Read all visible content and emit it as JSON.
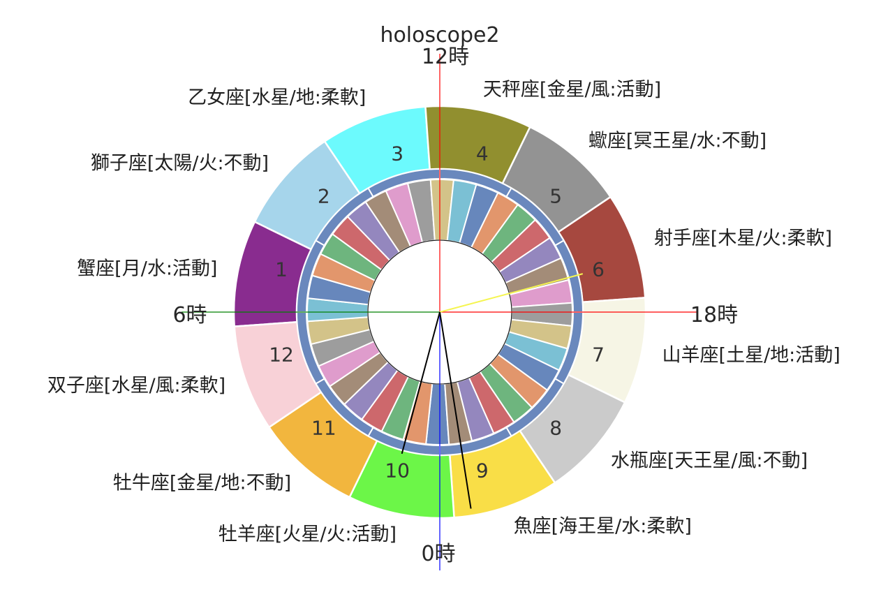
{
  "chart_data": {
    "type": "pie",
    "title": "holoscope2",
    "outer_ring": {
      "wedges": [
        {
          "number": "1",
          "label": "蟹座[月/水:活動]",
          "value": 1,
          "color": "#892c8f"
        },
        {
          "number": "2",
          "label": "獅子座[太陽/火:不動]",
          "value": 1,
          "color": "#a6d5eb"
        },
        {
          "number": "3",
          "label": "乙女座[水星/地:柔軟]",
          "value": 1,
          "color": "#6cfafd"
        },
        {
          "number": "4",
          "label": "天秤座[金星/風:活動]",
          "value": 1,
          "color": "#918f2f"
        },
        {
          "number": "5",
          "label": "蠍座[冥王星/水:不動]",
          "value": 1,
          "color": "#939393"
        },
        {
          "number": "6",
          "label": "射手座[木星/火:柔軟]",
          "value": 1,
          "color": "#a6483f"
        },
        {
          "number": "7",
          "label": "山羊座[土星/地:活動]",
          "value": 1,
          "color": "#f6f5e5"
        },
        {
          "number": "8",
          "label": "水瓶座[天王星/風:不動]",
          "value": 1,
          "color": "#cbcbcb"
        },
        {
          "number": "9",
          "label": "魚座[海王星/水:柔軟]",
          "value": 1,
          "color": "#f9de47"
        },
        {
          "number": "10",
          "label": "牡羊座[火星/火:活動]",
          "value": 1,
          "color": "#6cf648"
        },
        {
          "number": "11",
          "label": "牡牛座[金星/地:不動]",
          "value": 1,
          "color": "#f2b63e"
        },
        {
          "number": "12",
          "label": "双子座[水星/風:柔軟]",
          "value": 1,
          "color": "#f8d1d7"
        }
      ]
    },
    "separator_ring": {
      "color": "#6a88bd",
      "values": [
        1,
        1,
        1,
        1,
        1,
        1,
        1,
        1,
        1,
        1,
        1,
        1
      ]
    },
    "inner_ring": {
      "values": [
        1,
        1,
        1,
        1,
        1,
        1,
        1,
        1,
        1,
        1,
        1,
        1,
        1,
        1,
        1,
        1,
        1,
        1,
        1,
        1,
        1,
        1,
        1,
        1,
        1,
        1,
        1,
        1,
        1,
        1,
        1,
        1,
        1,
        1,
        1,
        1
      ],
      "palette": [
        "#6787bc",
        "#e2966c",
        "#6eb57e",
        "#cd686c",
        "#9487be",
        "#a38c78",
        "#df9ccc",
        "#9d9d9d",
        "#d3c389",
        "#7bc0d4"
      ]
    },
    "center_circle": {
      "fill": "#ffffff",
      "edge": "#1a1a1a"
    },
    "dial": [
      {
        "text": "12時",
        "hour": 12,
        "line_color": "#ff0000"
      },
      {
        "text": "18時",
        "hour": 18,
        "line_color": "#ff0000"
      },
      {
        "text": "0時",
        "hour": 0,
        "line_color": "#0000ff"
      },
      {
        "text": "6時",
        "hour": 6,
        "line_color": "#008000"
      }
    ],
    "hands": [
      {
        "hour": 17.0,
        "color": "#f5f550"
      },
      {
        "hour": 1.0,
        "color": "#000000"
      },
      {
        "hour": 23.4,
        "color": "#000000"
      }
    ]
  }
}
